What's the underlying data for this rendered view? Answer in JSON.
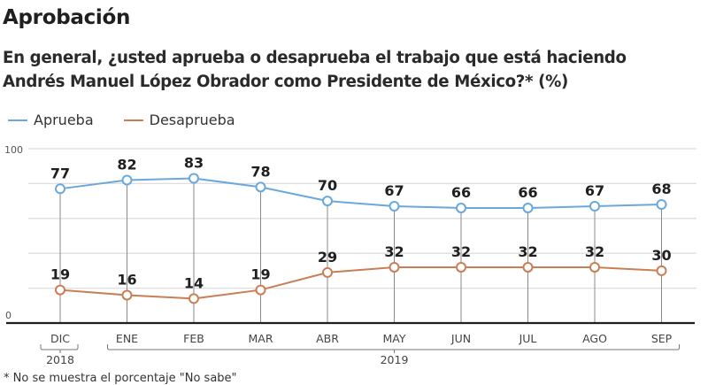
{
  "header": {
    "title": "Aprobación",
    "subtitle_line1": "En general, ¿usted aprueba o desaprueba el trabajo que está haciendo",
    "subtitle_line2": "Andrés Manuel López Obrador como Presidente de México?*  (%)"
  },
  "footnote": "* No se muestra el porcentaje \"No sabe\"",
  "chart_data": {
    "type": "line",
    "title": "Aprobación",
    "subtitle": "En general, ¿usted aprueba o desaprueba el trabajo que está haciendo Andrés Manuel López Obrador como Presidente de México?* (%)",
    "xlabel": "",
    "ylabel": "",
    "categories": [
      "DIC",
      "ENE",
      "FEB",
      "MAR",
      "ABR",
      "MAY",
      "JUN",
      "JUL",
      "AGO",
      "SEP"
    ],
    "year_groups": [
      {
        "label": "2018",
        "from": "DIC",
        "to": "DIC"
      },
      {
        "label": "2019",
        "from": "ENE",
        "to": "SEP"
      }
    ],
    "series": [
      {
        "name": "Aprueba",
        "color": "#6aa8dc",
        "values": [
          77,
          82,
          83,
          78,
          70,
          67,
          66,
          66,
          67,
          68
        ]
      },
      {
        "name": "Desaprueba",
        "color": "#c97e55",
        "values": [
          19,
          16,
          14,
          19,
          29,
          32,
          32,
          32,
          32,
          30
        ]
      }
    ],
    "ylim": [
      0,
      100
    ],
    "y_tick_labels": [
      "100",
      "0"
    ],
    "gridlines": [
      0,
      20,
      40,
      60,
      80,
      100
    ],
    "grid": true,
    "legend_position": "top-left",
    "data_labels": true
  }
}
